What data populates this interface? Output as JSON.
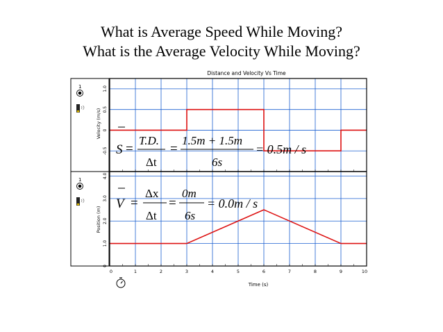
{
  "slide": {
    "title_line1": "What is Average Speed While Moving?",
    "title_line2": "What is the Average Velocity While Moving?"
  },
  "chart_header": "Distance and Velocity Vs Time",
  "chart_data": [
    {
      "type": "line",
      "name": "velocity",
      "ylabel": "Velocity (m/s)",
      "yticks": [
        "-0.5",
        "0",
        "0.5",
        "1.0"
      ],
      "ylim": [
        -1.0,
        1.25
      ],
      "xlim": [
        0,
        10
      ],
      "grid": true,
      "x": [
        0,
        3,
        3,
        6,
        6,
        9,
        9,
        10
      ],
      "y": [
        0,
        0,
        0.5,
        0.5,
        -0.5,
        -0.5,
        0,
        0
      ],
      "color": "#dd1111"
    },
    {
      "type": "line",
      "name": "position",
      "ylabel": "Position (m)",
      "yticks": [
        "0",
        "1.0",
        "2.0",
        "3.0",
        "4.0"
      ],
      "ylim": [
        0,
        4.2
      ],
      "xlim": [
        0,
        10
      ],
      "grid": true,
      "x": [
        0,
        3,
        6,
        9,
        10
      ],
      "y": [
        1.0,
        1.0,
        2.5,
        1.0,
        1.0
      ],
      "color": "#dd1111",
      "xlabel": "Time (s)",
      "xticks": [
        "0",
        "1",
        "2",
        "3",
        "4",
        "5",
        "6",
        "7",
        "8",
        "9",
        "10"
      ]
    }
  ],
  "sidebar": {
    "top_number": "1",
    "bottom_number": "1"
  },
  "equations": {
    "speed": {
      "lhs": "S",
      "numerator1": "T.D.",
      "denominator1": "Δt",
      "numerator2": "1.5m + 1.5m",
      "denominator2": "6s",
      "result": "= 0.5m / s"
    },
    "velocity": {
      "lhs": "V",
      "numerator1": "Δx",
      "denominator1": "Δt",
      "numerator2": "0m",
      "denominator2": "6s",
      "result": "= 0.0m / s"
    }
  },
  "colors": {
    "grid": "#1a5fd0",
    "line": "#dd1111",
    "frame": "#000000"
  }
}
